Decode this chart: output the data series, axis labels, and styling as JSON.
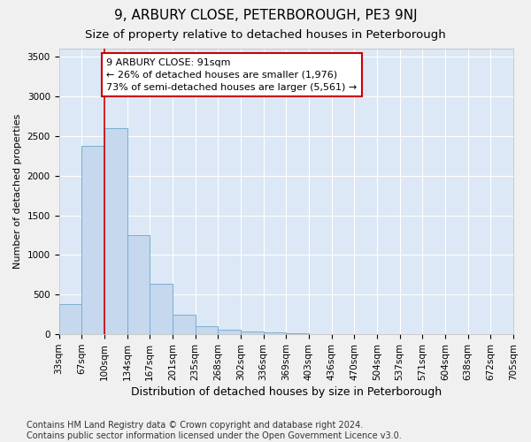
{
  "title1": "9, ARBURY CLOSE, PETERBOROUGH, PE3 9NJ",
  "title2": "Size of property relative to detached houses in Peterborough",
  "xlabel": "Distribution of detached houses by size in Peterborough",
  "ylabel": "Number of detached properties",
  "bin_labels": [
    "33sqm",
    "67sqm",
    "100sqm",
    "134sqm",
    "167sqm",
    "201sqm",
    "235sqm",
    "268sqm",
    "302sqm",
    "336sqm",
    "369sqm",
    "403sqm",
    "436sqm",
    "470sqm",
    "504sqm",
    "537sqm",
    "571sqm",
    "604sqm",
    "638sqm",
    "672sqm",
    "705sqm"
  ],
  "bar_values": [
    380,
    2380,
    2600,
    1250,
    640,
    250,
    100,
    55,
    35,
    20,
    10,
    0,
    0,
    0,
    0,
    0,
    0,
    0,
    0,
    0
  ],
  "bar_color": "#c5d8ee",
  "bar_edge_color": "#7aaed4",
  "vline_x": 2.0,
  "vline_color": "#cc0000",
  "annotation_text": "9 ARBURY CLOSE: 91sqm\n← 26% of detached houses are smaller (1,976)\n73% of semi-detached houses are larger (5,561) →",
  "annotation_box_color": "#ffffff",
  "annotation_box_edge": "#cc0000",
  "ylim": [
    0,
    3600
  ],
  "yticks": [
    0,
    500,
    1000,
    1500,
    2000,
    2500,
    3000,
    3500
  ],
  "bg_color": "#f0f0f0",
  "plot_bg_color": "#dce8f5",
  "footer": "Contains HM Land Registry data © Crown copyright and database right 2024.\nContains public sector information licensed under the Open Government Licence v3.0.",
  "title1_fontsize": 11,
  "title2_fontsize": 9.5,
  "xlabel_fontsize": 9,
  "ylabel_fontsize": 8,
  "tick_fontsize": 7.5,
  "annotation_fontsize": 8,
  "footer_fontsize": 7
}
